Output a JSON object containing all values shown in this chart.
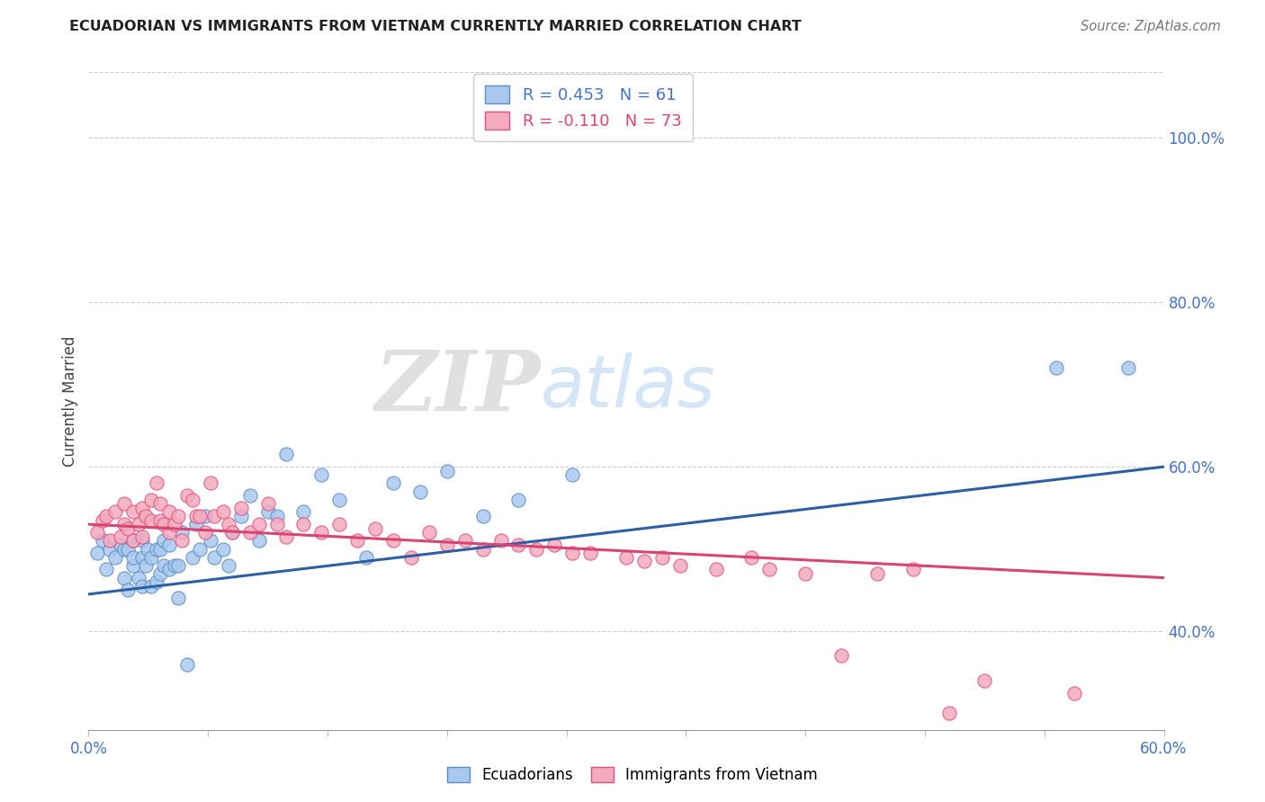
{
  "title": "ECUADORIAN VS IMMIGRANTS FROM VIETNAM CURRENTLY MARRIED CORRELATION CHART",
  "source": "Source: ZipAtlas.com",
  "ylabel": "Currently Married",
  "ylabel_right_ticks": [
    "100.0%",
    "80.0%",
    "60.0%",
    "40.0%"
  ],
  "ylabel_right_vals": [
    1.0,
    0.8,
    0.6,
    0.4
  ],
  "xmin": 0.0,
  "xmax": 0.6,
  "ymin": 0.28,
  "ymax": 1.08,
  "blue_color": "#A8C8EE",
  "pink_color": "#F4AABF",
  "blue_edge_color": "#5B8CC4",
  "pink_edge_color": "#E05080",
  "blue_line_color": "#2E5FA3",
  "pink_line_color": "#D94470",
  "right_tick_color": "#4472C4",
  "legend_blue_R": "R = 0.453",
  "legend_blue_N": "N = 61",
  "legend_pink_R": "R = -0.110",
  "legend_pink_N": "N = 73",
  "blue_scatter_x": [
    0.005,
    0.008,
    0.01,
    0.012,
    0.015,
    0.018,
    0.02,
    0.02,
    0.022,
    0.022,
    0.025,
    0.025,
    0.025,
    0.028,
    0.03,
    0.03,
    0.03,
    0.032,
    0.033,
    0.035,
    0.035,
    0.038,
    0.038,
    0.04,
    0.04,
    0.042,
    0.042,
    0.045,
    0.045,
    0.048,
    0.05,
    0.05,
    0.052,
    0.055,
    0.058,
    0.06,
    0.062,
    0.065,
    0.068,
    0.07,
    0.075,
    0.078,
    0.08,
    0.085,
    0.09,
    0.095,
    0.1,
    0.105,
    0.11,
    0.12,
    0.13,
    0.14,
    0.155,
    0.17,
    0.185,
    0.2,
    0.22,
    0.24,
    0.27,
    0.54,
    0.58
  ],
  "blue_scatter_y": [
    0.495,
    0.51,
    0.475,
    0.5,
    0.49,
    0.505,
    0.465,
    0.5,
    0.45,
    0.5,
    0.48,
    0.49,
    0.51,
    0.465,
    0.455,
    0.49,
    0.51,
    0.48,
    0.5,
    0.455,
    0.49,
    0.46,
    0.5,
    0.47,
    0.5,
    0.48,
    0.51,
    0.475,
    0.505,
    0.48,
    0.44,
    0.48,
    0.52,
    0.36,
    0.49,
    0.53,
    0.5,
    0.54,
    0.51,
    0.49,
    0.5,
    0.48,
    0.52,
    0.54,
    0.565,
    0.51,
    0.545,
    0.54,
    0.615,
    0.545,
    0.59,
    0.56,
    0.49,
    0.58,
    0.57,
    0.595,
    0.54,
    0.56,
    0.59,
    0.72,
    0.72
  ],
  "pink_scatter_x": [
    0.005,
    0.008,
    0.01,
    0.012,
    0.015,
    0.018,
    0.02,
    0.02,
    0.022,
    0.025,
    0.025,
    0.028,
    0.03,
    0.03,
    0.032,
    0.035,
    0.035,
    0.038,
    0.04,
    0.04,
    0.042,
    0.045,
    0.045,
    0.048,
    0.05,
    0.052,
    0.055,
    0.058,
    0.06,
    0.062,
    0.065,
    0.068,
    0.07,
    0.075,
    0.078,
    0.08,
    0.085,
    0.09,
    0.095,
    0.1,
    0.105,
    0.11,
    0.12,
    0.13,
    0.14,
    0.15,
    0.16,
    0.17,
    0.18,
    0.19,
    0.2,
    0.21,
    0.22,
    0.23,
    0.24,
    0.25,
    0.26,
    0.27,
    0.28,
    0.3,
    0.31,
    0.32,
    0.33,
    0.35,
    0.37,
    0.38,
    0.4,
    0.42,
    0.44,
    0.46,
    0.48,
    0.5,
    0.55
  ],
  "pink_scatter_y": [
    0.52,
    0.535,
    0.54,
    0.51,
    0.545,
    0.515,
    0.53,
    0.555,
    0.525,
    0.51,
    0.545,
    0.53,
    0.515,
    0.55,
    0.54,
    0.535,
    0.56,
    0.58,
    0.555,
    0.535,
    0.53,
    0.545,
    0.52,
    0.53,
    0.54,
    0.51,
    0.565,
    0.56,
    0.54,
    0.54,
    0.52,
    0.58,
    0.54,
    0.545,
    0.53,
    0.52,
    0.55,
    0.52,
    0.53,
    0.555,
    0.53,
    0.515,
    0.53,
    0.52,
    0.53,
    0.51,
    0.525,
    0.51,
    0.49,
    0.52,
    0.505,
    0.51,
    0.5,
    0.51,
    0.505,
    0.5,
    0.505,
    0.495,
    0.495,
    0.49,
    0.485,
    0.49,
    0.48,
    0.475,
    0.49,
    0.475,
    0.47,
    0.37,
    0.47,
    0.475,
    0.3,
    0.34,
    0.325
  ],
  "blue_trendline_x0": 0.0,
  "blue_trendline_x1": 0.6,
  "blue_trendline_y0": 0.445,
  "blue_trendline_y1": 0.6,
  "pink_trendline_x0": 0.0,
  "pink_trendline_x1": 0.6,
  "pink_trendline_y0": 0.53,
  "pink_trendline_y1": 0.465
}
